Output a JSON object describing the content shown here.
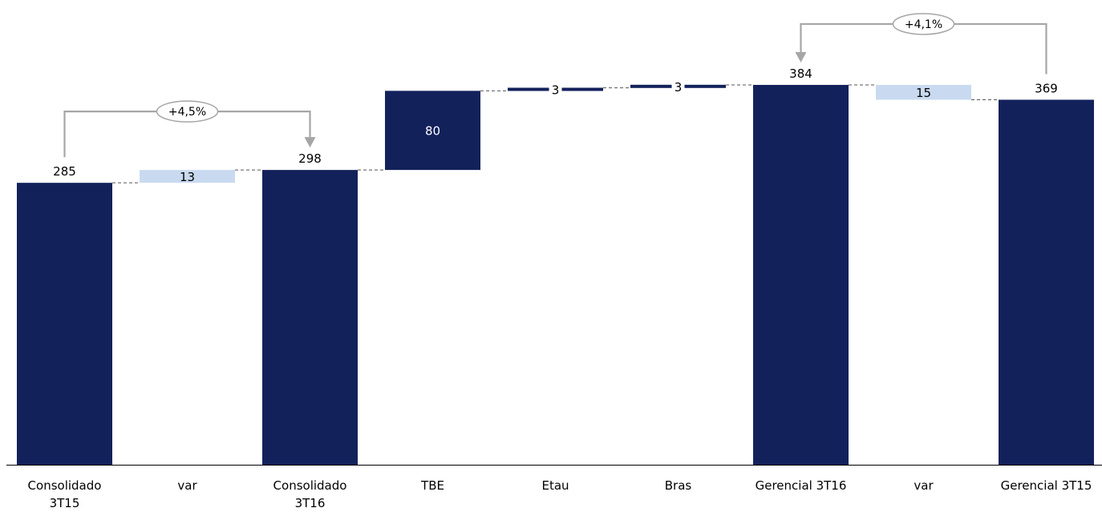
{
  "colors": {
    "total_bar": "#13215B",
    "delta_bar": "#C9DAF0",
    "axis": "#000000",
    "connector": "#555555",
    "bracket": "#A6A6A6"
  },
  "chart_data": {
    "type": "waterfall",
    "title": "",
    "xlabel": "",
    "ylabel": "",
    "ylim": [
      0,
      390
    ],
    "grid": false,
    "legend": "none",
    "bars": [
      {
        "category": [
          "Consolidado",
          "3T15"
        ],
        "kind": "total",
        "start": 0,
        "end": 285,
        "label": "285",
        "label_pos": "above"
      },
      {
        "category": [
          "var"
        ],
        "kind": "delta",
        "start": 285,
        "end": 298,
        "label": "13",
        "label_pos": "center"
      },
      {
        "category": [
          "Consolidado",
          "3T16"
        ],
        "kind": "total",
        "start": 0,
        "end": 298,
        "label": "298",
        "label_pos": "above"
      },
      {
        "category": [
          "TBE"
        ],
        "kind": "step",
        "start": 298,
        "end": 378,
        "label": "80",
        "label_pos": "inside"
      },
      {
        "category": [
          "Etau"
        ],
        "kind": "step",
        "start": 378,
        "end": 381,
        "label": "3",
        "label_pos": "center"
      },
      {
        "category": [
          "Bras"
        ],
        "kind": "step",
        "start": 381,
        "end": 384,
        "label": "3",
        "label_pos": "center"
      },
      {
        "category": [
          "Gerencial 3T16"
        ],
        "kind": "total",
        "start": 0,
        "end": 384,
        "label": "384",
        "label_pos": "above"
      },
      {
        "category": [
          "var"
        ],
        "kind": "delta",
        "start": 369,
        "end": 384,
        "label": "15",
        "label_pos": "center"
      },
      {
        "category": [
          "Gerencial 3T15"
        ],
        "kind": "total",
        "start": 0,
        "end": 369,
        "label": "369",
        "label_pos": "above"
      }
    ],
    "annotations": [
      {
        "text": "+4,5%",
        "from_index": 0,
        "to_index": 2
      },
      {
        "text": "+4,1%",
        "from_index": 8,
        "to_index": 6
      }
    ]
  }
}
